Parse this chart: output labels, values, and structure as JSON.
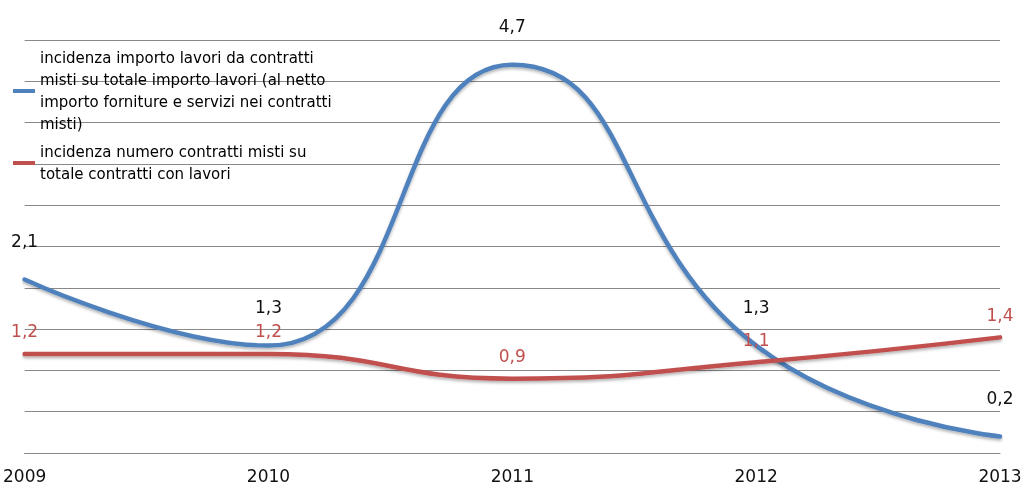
{
  "chart_data": {
    "type": "line",
    "categories": [
      "2009",
      "2010",
      "2011",
      "2012",
      "2013"
    ],
    "series": [
      {
        "name": "incidenza importo lavori da contratti misti su totale importo lavori (al netto importo forniture e servizi nei contratti misti)",
        "color": "#4f81bd",
        "values": [
          2.1,
          1.3,
          4.7,
          1.3,
          0.2
        ],
        "value_labels": [
          "2,1",
          "1,3",
          "4,7",
          "1,3",
          "0,2"
        ]
      },
      {
        "name": "incidenza numero contratti misti su totale contratti con lavori",
        "color": "#c0504d",
        "values": [
          1.2,
          1.2,
          0.9,
          1.1,
          1.4
        ],
        "value_labels": [
          "1,2",
          "1,2",
          "0,9",
          "1,1",
          "1,4"
        ]
      }
    ],
    "grid": "y",
    "legend": "top left",
    "marker": "none",
    "line_style": "solid",
    "tick_labels": "x"
  }
}
